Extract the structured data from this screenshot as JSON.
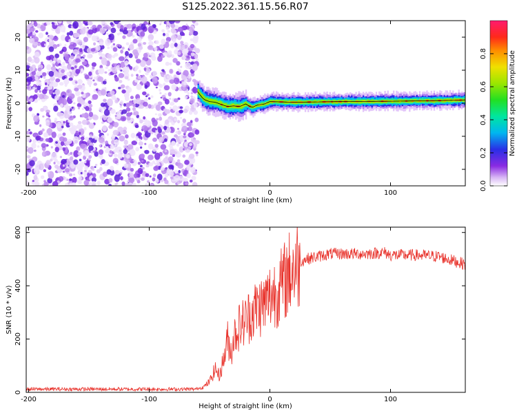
{
  "title": "S125.2022.361.15.56.R07",
  "chart_data": [
    {
      "type": "heatmap",
      "xlabel": "Height of straight line (km)",
      "ylabel": "Frequency (Hz)",
      "xlim": [
        -202,
        162
      ],
      "ylim": [
        -25,
        25
      ],
      "x_ticks": [
        -200,
        -100,
        0,
        100
      ],
      "y_ticks": [
        -20,
        -10,
        0,
        10,
        20
      ],
      "noise_region_x": [
        -202,
        -60
      ],
      "signal_band": {
        "x": [
          -60,
          -55,
          -50,
          -45,
          -40,
          -35,
          -30,
          -25,
          -20,
          -15,
          -10,
          -5,
          0,
          20,
          60,
          100,
          140,
          162
        ],
        "frequency": [
          3.5,
          1.2,
          0.5,
          0.3,
          -0.4,
          -1.0,
          -0.8,
          -1.0,
          -0.2,
          -1.3,
          -0.5,
          -0.3,
          0.5,
          0.3,
          0.5,
          0.6,
          0.8,
          1.0
        ]
      },
      "colorbar": {
        "label": "Normalized spectral amplitude",
        "range": [
          0,
          1
        ],
        "ticks": [
          "0.0",
          "0.2",
          "0.4",
          "0.6",
          "0.8"
        ]
      },
      "grid": false
    },
    {
      "type": "line",
      "xlabel": "Height of straight line (km)",
      "ylabel": "SNR (10 * v/v)",
      "xlim": [
        -202,
        162
      ],
      "ylim": [
        0,
        620
      ],
      "x_ticks": [
        -200,
        -100,
        0,
        100
      ],
      "y_ticks": [
        0,
        200,
        400,
        600
      ],
      "series": [
        {
          "color": "#e8312a",
          "x": [
            -202,
            -150,
            -100,
            -62,
            -55,
            -50,
            -45,
            -42,
            -38,
            -35,
            -32,
            -30,
            -25,
            -20,
            -15,
            -10,
            -5,
            0,
            5,
            10,
            15,
            20,
            25,
            30,
            40,
            50,
            60,
            80,
            95,
            100,
            120,
            140,
            155,
            162
          ],
          "values": [
            12,
            12,
            12,
            12,
            20,
            40,
            90,
            60,
            130,
            200,
            150,
            210,
            250,
            270,
            300,
            320,
            330,
            360,
            380,
            400,
            440,
            470,
            490,
            500,
            510,
            520,
            520,
            520,
            525,
            515,
            515,
            510,
            490,
            480
          ]
        }
      ],
      "grid": false
    }
  ]
}
